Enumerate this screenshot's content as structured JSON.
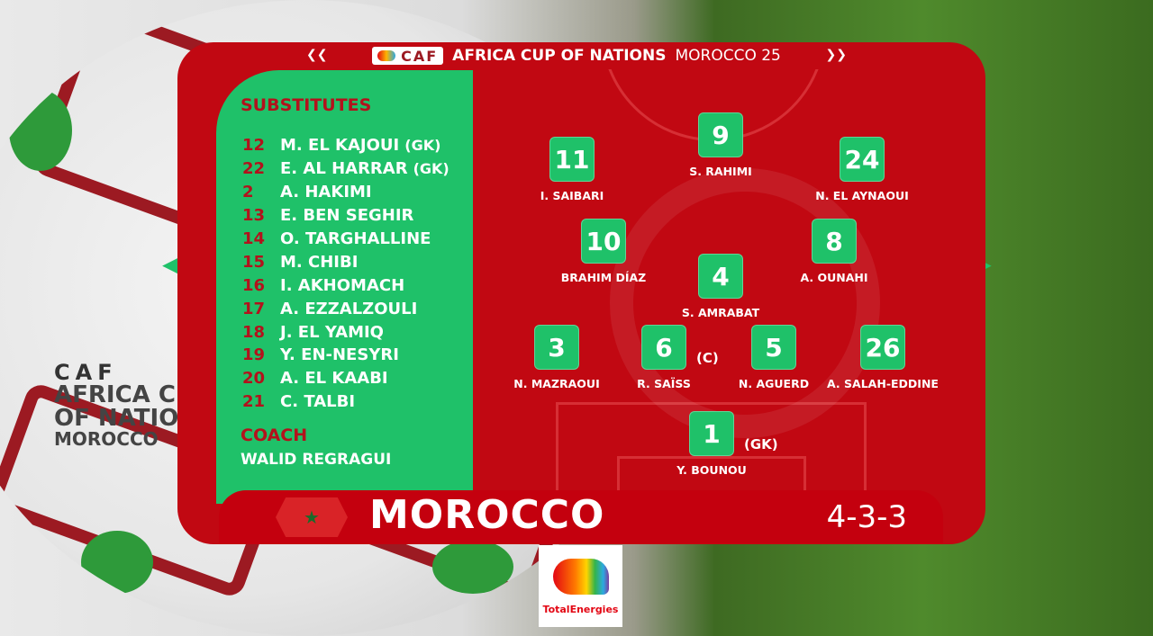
{
  "header": {
    "sponsor": "TotalEnergies",
    "org": "CAF",
    "title": "AFRICA CUP OF NATIONS",
    "subtitle": "MOROCCO 25"
  },
  "substitutes": {
    "title": "SUBSTITUTES",
    "players": [
      {
        "number": "12",
        "name": "M. EL KAJOUI",
        "tag": "(GK)"
      },
      {
        "number": "22",
        "name": "E. AL HARRAR",
        "tag": "(GK)"
      },
      {
        "number": "2",
        "name": "A. HAKIMI",
        "tag": ""
      },
      {
        "number": "13",
        "name": "E. BEN SEGHIR",
        "tag": ""
      },
      {
        "number": "14",
        "name": "O. TARGHALLINE",
        "tag": ""
      },
      {
        "number": "15",
        "name": "M. CHIBI",
        "tag": ""
      },
      {
        "number": "16",
        "name": "I. AKHOMACH",
        "tag": ""
      },
      {
        "number": "17",
        "name": "A. EZZALZOULI",
        "tag": ""
      },
      {
        "number": "18",
        "name": "J. EL YAMIQ",
        "tag": ""
      },
      {
        "number": "19",
        "name": "Y. EN-NESYRI",
        "tag": ""
      },
      {
        "number": "20",
        "name": "A. EL KAABI",
        "tag": ""
      },
      {
        "number": "21",
        "name": "C. TALBI",
        "tag": ""
      }
    ]
  },
  "coach": {
    "title": "COACH",
    "name": "WALID REGRAGUI"
  },
  "lineup": [
    {
      "number": "9",
      "name": "S. RAHIMI",
      "tag": ""
    },
    {
      "number": "11",
      "name": "I. SAIBARI",
      "tag": ""
    },
    {
      "number": "24",
      "name": "N. EL AYNAOUI",
      "tag": ""
    },
    {
      "number": "10",
      "name": "BRAHIM DÍAZ",
      "tag": ""
    },
    {
      "number": "8",
      "name": "A. OUNAHI",
      "tag": ""
    },
    {
      "number": "4",
      "name": "S. AMRABAT",
      "tag": ""
    },
    {
      "number": "3",
      "name": "N. MAZRAOUI",
      "tag": ""
    },
    {
      "number": "6",
      "name": "R. SAÏSS",
      "tag": "(C)"
    },
    {
      "number": "5",
      "name": "N. AGUERD",
      "tag": ""
    },
    {
      "number": "26",
      "name": "A. SALAH-EDDINE",
      "tag": ""
    },
    {
      "number": "1",
      "name": "Y. BOUNOU",
      "tag": "(GK)"
    }
  ],
  "team": {
    "name": "MOROCCO",
    "formation": "4-3-3",
    "flag_icon": "morocco-flag-icon"
  },
  "sponsor_logo": {
    "text": "TotalEnergies"
  },
  "ball_print": {
    "org": "CAF",
    "line1": "AFRICA C",
    "line2": "OF NATIO",
    "line3": "MOROCCO"
  },
  "colors": {
    "red": "#c10812",
    "green": "#1fc169",
    "title_red": "#b3121c"
  }
}
